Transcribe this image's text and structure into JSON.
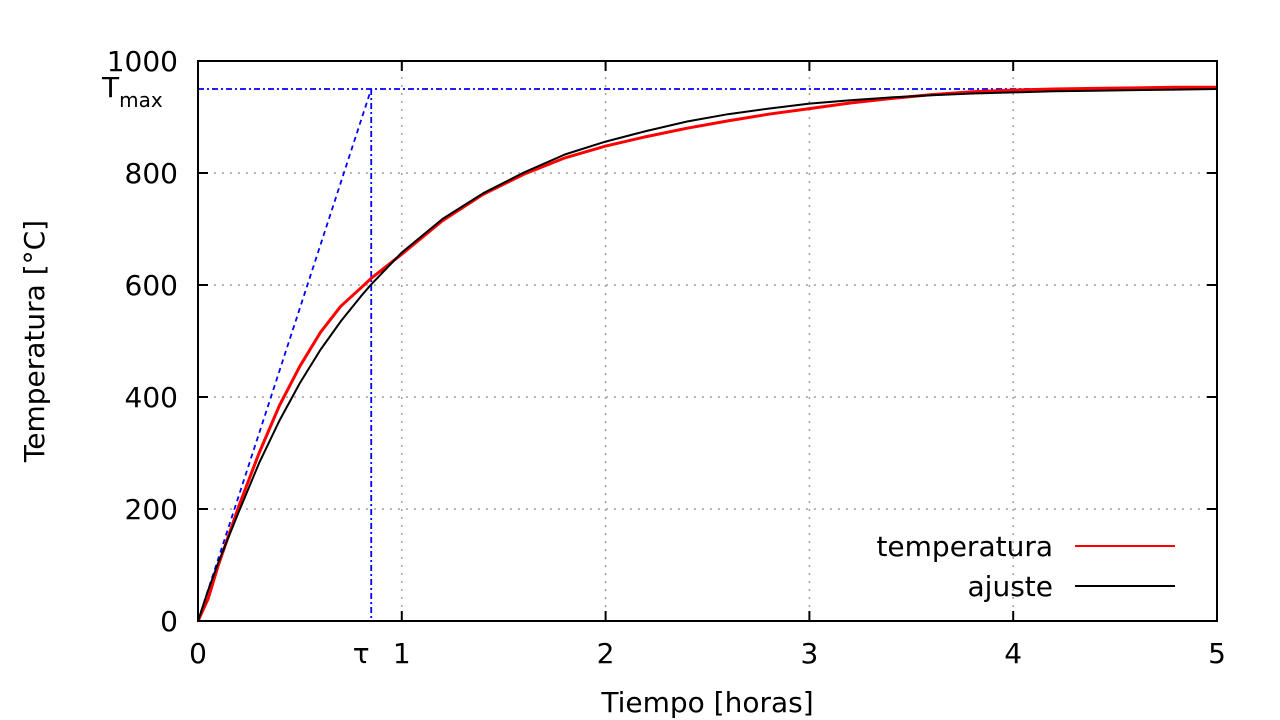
{
  "chart_data": {
    "type": "line",
    "xlabel": "Tiempo [horas]",
    "ylabel": "Temperatura [°C]",
    "xlim": [
      0,
      5
    ],
    "ylim": [
      0,
      1000
    ],
    "x_ticks": [
      0,
      1,
      2,
      3,
      4,
      5
    ],
    "y_ticks": [
      0,
      200,
      400,
      600,
      800,
      1000
    ],
    "grid": true,
    "legend_position": "bottom-right",
    "annotations": {
      "tau_label": "τ",
      "tmax_label": "T",
      "tmax_subscript": "max",
      "tau_value": 0.85,
      "tmax_value": 950
    },
    "series": [
      {
        "name": "temperatura",
        "color": "#ff0000",
        "x": [
          0,
          0.05,
          0.1,
          0.2,
          0.3,
          0.4,
          0.5,
          0.6,
          0.7,
          0.8,
          0.85,
          1.0,
          1.2,
          1.4,
          1.6,
          1.8,
          2.0,
          2.2,
          2.4,
          2.6,
          2.8,
          3.0,
          3.2,
          3.4,
          3.6,
          3.8,
          4.0,
          4.2,
          4.4,
          4.6,
          4.8,
          5.0
        ],
        "y": [
          0,
          40,
          100,
          205,
          300,
          385,
          455,
          515,
          562,
          595,
          612,
          655,
          715,
          762,
          798,
          827,
          848,
          865,
          880,
          893,
          905,
          915,
          925,
          933,
          940,
          945,
          948,
          950,
          951,
          952,
          953,
          953
        ]
      },
      {
        "name": "ajuste",
        "color": "#000000",
        "x": [
          0,
          0.05,
          0.1,
          0.2,
          0.3,
          0.4,
          0.5,
          0.6,
          0.7,
          0.8,
          0.85,
          1.0,
          1.2,
          1.4,
          1.6,
          1.8,
          2.0,
          2.2,
          2.4,
          2.6,
          2.8,
          3.0,
          3.2,
          3.4,
          3.6,
          3.8,
          4.0,
          4.2,
          4.4,
          4.6,
          4.8,
          5.0
        ],
        "y": [
          0,
          55,
          105,
          195,
          282,
          358,
          425,
          484,
          535,
          580,
          601,
          658,
          718,
          764,
          801,
          833,
          856,
          875,
          892,
          905,
          915,
          924,
          930,
          935,
          939,
          942,
          944,
          946,
          947,
          948,
          949,
          950
        ]
      }
    ],
    "guides": {
      "color": "#0000ff"
    }
  }
}
